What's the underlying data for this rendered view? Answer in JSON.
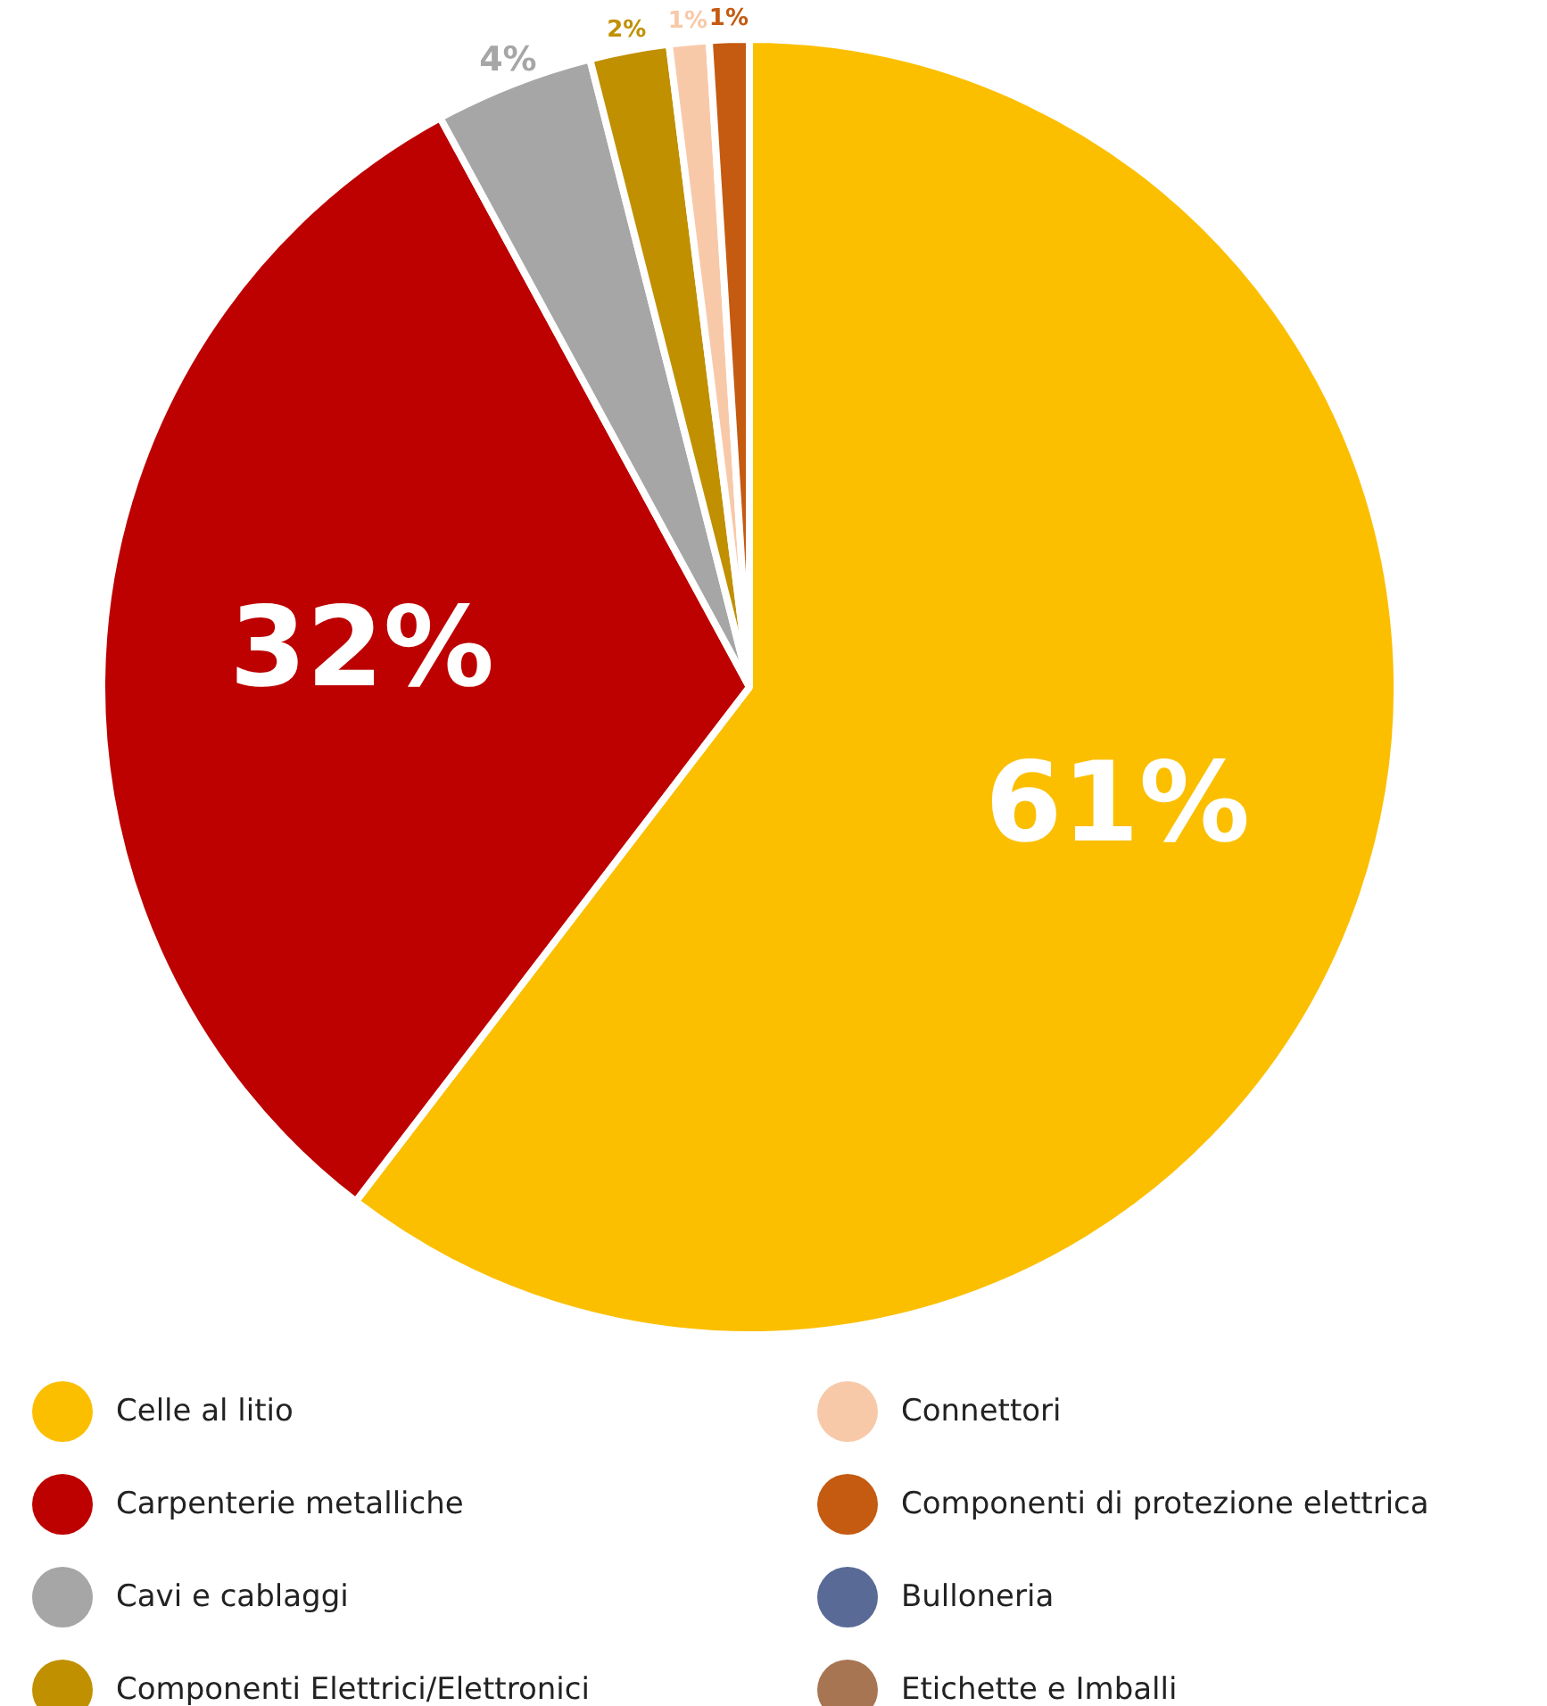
{
  "chart_data": {
    "type": "pie",
    "categories": [
      "Celle al litio",
      "Carpenterie metalliche",
      "Cavi e cablaggi",
      "Componenti Elettrici/Elettronici",
      "Connettori",
      "Componenti di protezione elettrica",
      "Bulloneria",
      "Etichette e Imballi"
    ],
    "values": [
      61,
      32,
      4,
      2,
      1,
      1,
      0,
      0
    ],
    "colors": [
      "#fbbf00",
      "#bd0000",
      "#a6a6a6",
      "#c09000",
      "#f8c9a8",
      "#c55a11",
      "#5a6a96",
      "#a87552"
    ],
    "value_labels": [
      "61%",
      "32%",
      "4%",
      "2%",
      "1%",
      "1%",
      null,
      null
    ],
    "legend": "bottom"
  }
}
